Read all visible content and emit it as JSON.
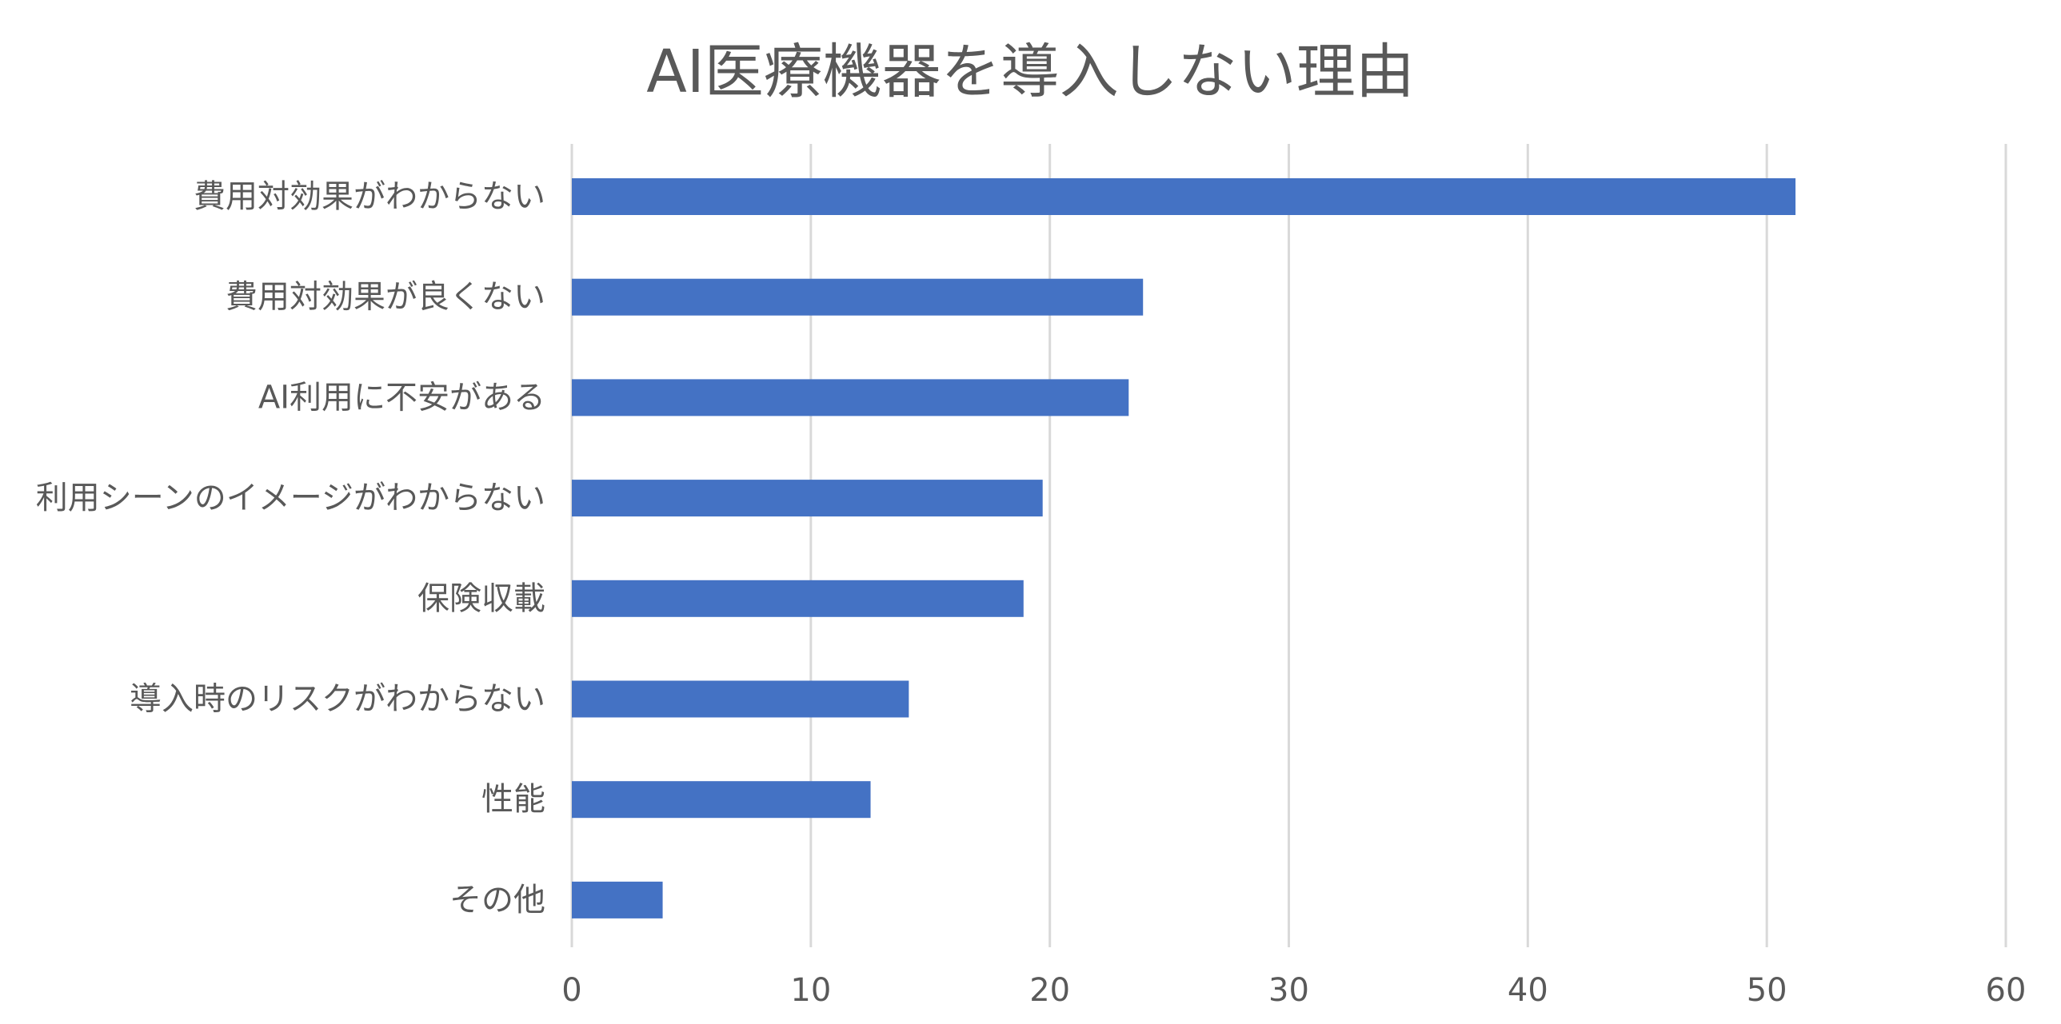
{
  "chart_data": {
    "type": "bar",
    "orientation": "horizontal",
    "title": "AI医療機器を導入しない理由",
    "categories": [
      "費用対効果がわからない",
      "費用対効果が良くない",
      "AI利用に不安がある",
      "利用シーンのイメージがわからない",
      "保険収載",
      "導入時のリスクがわからない",
      "性能",
      "その他"
    ],
    "values": [
      51.2,
      23.9,
      23.3,
      19.7,
      18.9,
      14.1,
      12.5,
      3.8
    ],
    "xlim": [
      0,
      60
    ],
    "xticks": [
      "0",
      "10",
      "20",
      "30",
      "40",
      "50",
      "60"
    ],
    "grid": "vertical",
    "legend": "none",
    "bar_color": "#4472C4",
    "grid_color": "#D9D9D9"
  }
}
